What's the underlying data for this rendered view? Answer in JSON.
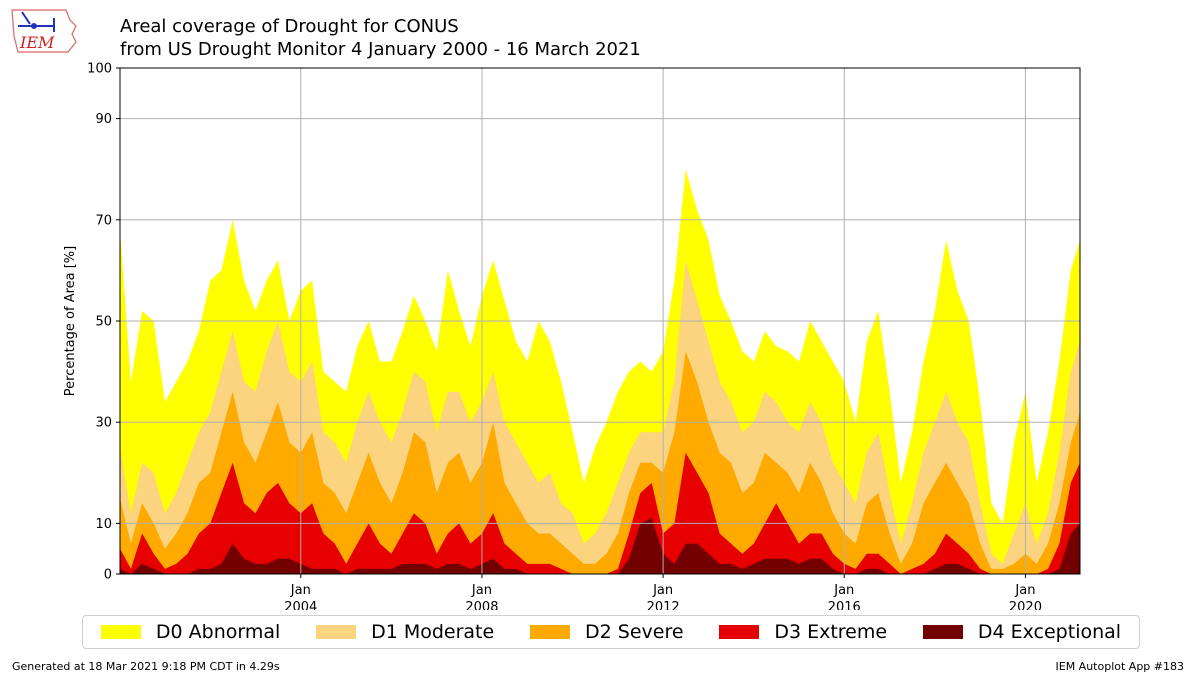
{
  "logo": {
    "text": "IEM"
  },
  "chart_data": {
    "type": "area",
    "stacked": false,
    "title": "Areal coverage of Drought for CONUS",
    "subtitle": "from US Drought Monitor 4 January 2000 - 16 March 2021",
    "ylabel": "Percentage of Area [%]",
    "xlabel": "",
    "ylim": [
      0,
      100
    ],
    "xlim": [
      "2000-01-04",
      "2021-03-16"
    ],
    "yticks": [
      0,
      10,
      30,
      50,
      70,
      90,
      100
    ],
    "xticks": [
      {
        "date": "2004-01-01",
        "month": "Jan",
        "year": "2004"
      },
      {
        "date": "2008-01-01",
        "month": "Jan",
        "year": "2008"
      },
      {
        "date": "2012-01-01",
        "month": "Jan",
        "year": "2012"
      },
      {
        "date": "2016-01-01",
        "month": "Jan",
        "year": "2016"
      },
      {
        "date": "2020-01-01",
        "month": "Jan",
        "year": "2020"
      }
    ],
    "grid": true,
    "legend_position": "bottom",
    "x": [
      "2000-01-04",
      "2000-04-01",
      "2000-07-01",
      "2000-10-01",
      "2001-01-01",
      "2001-04-01",
      "2001-07-01",
      "2001-10-01",
      "2002-01-01",
      "2002-04-01",
      "2002-07-01",
      "2002-10-01",
      "2003-01-01",
      "2003-04-01",
      "2003-07-01",
      "2003-10-01",
      "2004-01-01",
      "2004-04-01",
      "2004-07-01",
      "2004-10-01",
      "2005-01-01",
      "2005-04-01",
      "2005-07-01",
      "2005-10-01",
      "2006-01-01",
      "2006-04-01",
      "2006-07-01",
      "2006-10-01",
      "2007-01-01",
      "2007-04-01",
      "2007-07-01",
      "2007-10-01",
      "2008-01-01",
      "2008-04-01",
      "2008-07-01",
      "2008-10-01",
      "2009-01-01",
      "2009-04-01",
      "2009-07-01",
      "2009-10-01",
      "2010-01-01",
      "2010-04-01",
      "2010-07-01",
      "2010-10-01",
      "2011-01-01",
      "2011-04-01",
      "2011-07-01",
      "2011-10-01",
      "2012-01-01",
      "2012-04-01",
      "2012-07-01",
      "2012-10-01",
      "2013-01-01",
      "2013-04-01",
      "2013-07-01",
      "2013-10-01",
      "2014-01-01",
      "2014-04-01",
      "2014-07-01",
      "2014-10-01",
      "2015-01-01",
      "2015-04-01",
      "2015-07-01",
      "2015-10-01",
      "2016-01-01",
      "2016-04-01",
      "2016-07-01",
      "2016-10-01",
      "2017-01-01",
      "2017-04-01",
      "2017-07-01",
      "2017-10-01",
      "2018-01-01",
      "2018-04-01",
      "2018-07-01",
      "2018-10-01",
      "2019-01-01",
      "2019-04-01",
      "2019-07-01",
      "2019-10-01",
      "2020-01-01",
      "2020-04-01",
      "2020-07-01",
      "2020-10-01",
      "2021-01-01",
      "2021-03-16"
    ],
    "series": [
      {
        "name": "D0 Abnormal",
        "color": "#ffff00",
        "values": [
          68,
          38,
          52,
          50,
          34,
          38,
          42,
          48,
          58,
          60,
          70,
          58,
          52,
          58,
          62,
          50,
          56,
          58,
          40,
          38,
          36,
          45,
          50,
          42,
          42,
          48,
          55,
          50,
          44,
          60,
          52,
          45,
          55,
          62,
          54,
          46,
          42,
          50,
          46,
          38,
          28,
          18,
          25,
          30,
          36,
          40,
          42,
          40,
          44,
          58,
          80,
          72,
          66,
          55,
          50,
          44,
          42,
          48,
          45,
          44,
          42,
          50,
          46,
          42,
          38,
          30,
          46,
          52,
          36,
          18,
          28,
          42,
          52,
          66,
          56,
          50,
          34,
          14,
          10,
          26,
          36,
          18,
          28,
          42,
          60,
          66
        ]
      },
      {
        "name": "D1 Moderate",
        "color": "#fcd37f",
        "values": [
          25,
          12,
          22,
          20,
          12,
          16,
          22,
          28,
          32,
          40,
          48,
          38,
          36,
          44,
          50,
          40,
          38,
          42,
          28,
          26,
          22,
          30,
          36,
          30,
          26,
          32,
          40,
          38,
          28,
          36,
          36,
          30,
          34,
          40,
          30,
          26,
          22,
          18,
          20,
          14,
          12,
          6,
          8,
          12,
          18,
          24,
          28,
          28,
          28,
          38,
          62,
          54,
          46,
          38,
          34,
          28,
          30,
          36,
          34,
          30,
          28,
          34,
          30,
          22,
          18,
          14,
          24,
          28,
          16,
          6,
          14,
          24,
          30,
          36,
          30,
          26,
          14,
          4,
          2,
          8,
          14,
          6,
          12,
          24,
          40,
          46
        ]
      },
      {
        "name": "D2 Severe",
        "color": "#ffaa00",
        "values": [
          15,
          6,
          14,
          10,
          5,
          8,
          12,
          18,
          20,
          28,
          36,
          26,
          22,
          28,
          34,
          26,
          24,
          28,
          18,
          16,
          12,
          18,
          24,
          18,
          14,
          20,
          28,
          26,
          16,
          22,
          24,
          18,
          22,
          30,
          18,
          14,
          10,
          8,
          8,
          6,
          4,
          2,
          2,
          4,
          8,
          16,
          22,
          22,
          20,
          28,
          44,
          38,
          30,
          24,
          22,
          16,
          18,
          24,
          22,
          20,
          16,
          22,
          18,
          12,
          8,
          6,
          14,
          16,
          8,
          2,
          6,
          14,
          18,
          22,
          18,
          14,
          6,
          1,
          1,
          2,
          4,
          2,
          6,
          14,
          26,
          32
        ]
      },
      {
        "name": "D3 Extreme",
        "color": "#e60000",
        "values": [
          5,
          1,
          8,
          4,
          1,
          2,
          4,
          8,
          10,
          16,
          22,
          14,
          12,
          16,
          18,
          14,
          12,
          14,
          8,
          6,
          2,
          6,
          10,
          6,
          4,
          8,
          12,
          10,
          4,
          8,
          10,
          6,
          8,
          12,
          6,
          4,
          2,
          2,
          2,
          1,
          0,
          0,
          0,
          0,
          1,
          8,
          16,
          18,
          8,
          10,
          24,
          20,
          16,
          8,
          6,
          4,
          6,
          10,
          14,
          10,
          6,
          8,
          8,
          4,
          2,
          1,
          4,
          4,
          2,
          0,
          1,
          2,
          4,
          8,
          6,
          4,
          1,
          0,
          0,
          0,
          0,
          0,
          1,
          6,
          18,
          22
        ]
      },
      {
        "name": "D4 Exceptional",
        "color": "#730000",
        "values": [
          1,
          0,
          2,
          1,
          0,
          0,
          0,
          1,
          1,
          2,
          6,
          3,
          2,
          2,
          3,
          3,
          2,
          1,
          1,
          1,
          0,
          1,
          1,
          1,
          1,
          2,
          2,
          2,
          1,
          2,
          2,
          1,
          2,
          3,
          1,
          1,
          0,
          0,
          0,
          0,
          0,
          0,
          0,
          0,
          0,
          3,
          10,
          11,
          4,
          2,
          6,
          6,
          4,
          2,
          2,
          1,
          2,
          3,
          3,
          3,
          2,
          3,
          3,
          1,
          0,
          0,
          1,
          1,
          0,
          0,
          0,
          0,
          1,
          2,
          2,
          1,
          0,
          0,
          0,
          0,
          0,
          0,
          0,
          1,
          8,
          10
        ]
      }
    ]
  },
  "footer": {
    "generated": "Generated at 18 Mar 2021 9:18 PM CDT in 4.29s",
    "app": "IEM Autoplot App #183"
  }
}
